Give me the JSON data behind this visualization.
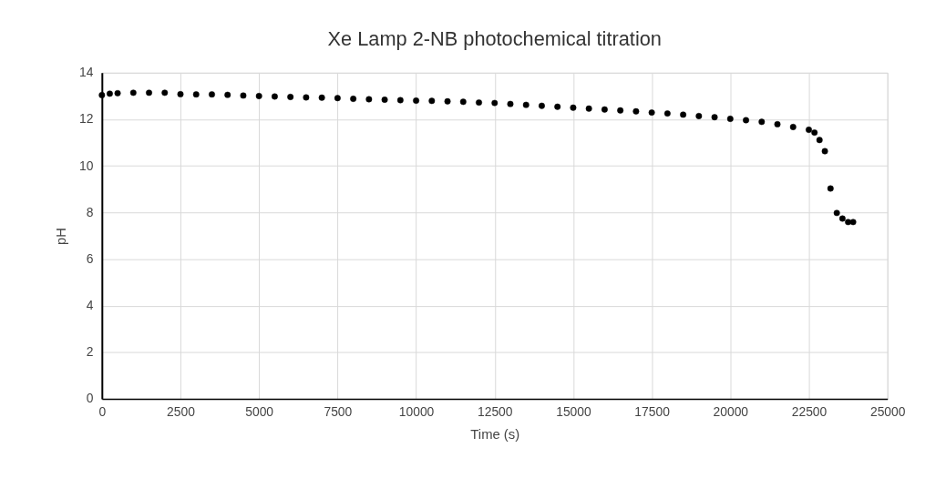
{
  "chart_data": {
    "type": "scatter",
    "title": "Xe Lamp 2-NB photochemical titration",
    "xlabel": "Time (s)",
    "ylabel": "pH",
    "x": [
      0,
      250,
      500,
      1000,
      1500,
      2000,
      2500,
      3000,
      3500,
      4000,
      4500,
      5000,
      5500,
      6000,
      6500,
      7000,
      7500,
      8000,
      8500,
      9000,
      9500,
      10000,
      10500,
      11000,
      11500,
      12000,
      12500,
      13000,
      13500,
      14000,
      14500,
      15000,
      15500,
      16000,
      16500,
      17000,
      17500,
      18000,
      18500,
      19000,
      19500,
      20000,
      20500,
      21000,
      21500,
      22000,
      22500,
      22680,
      22840,
      23010,
      23190,
      23390,
      23570,
      23750,
      23910
    ],
    "series": [
      {
        "color": "#000000",
        "values": [
          13.04,
          13.1,
          13.12,
          13.14,
          13.14,
          13.14,
          13.08,
          13.07,
          13.07,
          13.05,
          13.02,
          13.0,
          12.98,
          12.96,
          12.94,
          12.93,
          12.91,
          12.88,
          12.86,
          12.84,
          12.82,
          12.8,
          12.79,
          12.77,
          12.75,
          12.72,
          12.7,
          12.66,
          12.62,
          12.58,
          12.54,
          12.5,
          12.46,
          12.42,
          12.38,
          12.34,
          12.29,
          12.25,
          12.2,
          12.14,
          12.09,
          12.02,
          11.96,
          11.89,
          11.79,
          11.67,
          11.55,
          11.43,
          11.11,
          10.63,
          9.03,
          7.98,
          7.74,
          7.59,
          7.59
        ]
      }
    ],
    "xlim": [
      0,
      25000
    ],
    "xticks": [
      0,
      2500,
      5000,
      7500,
      10000,
      12500,
      15000,
      17500,
      20000,
      22500,
      25000
    ],
    "ylim": [
      0,
      14
    ],
    "yticks": [
      0,
      2,
      4,
      6,
      8,
      10,
      12,
      14
    ],
    "grid": true,
    "marker": "circle",
    "legend": false
  }
}
